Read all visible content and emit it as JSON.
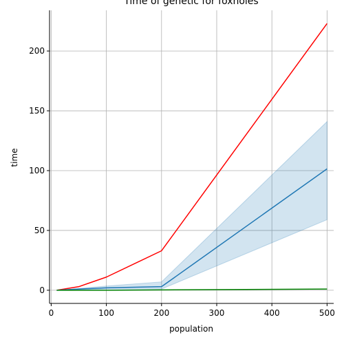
{
  "chart_data": {
    "type": "line",
    "title": "Time of genetic for foxholes",
    "xlabel": "population",
    "ylabel": "time",
    "xlim": [
      -3,
      512
    ],
    "ylim": [
      -11,
      234
    ],
    "xticks": [
      0,
      100,
      200,
      300,
      400,
      500
    ],
    "yticks": [
      0,
      50,
      100,
      150,
      200
    ],
    "grid": true,
    "series": [
      {
        "color": "#ff0000",
        "x": [
          10,
          50,
          100,
          200,
          500
        ],
        "y": [
          0,
          3,
          11,
          33,
          223
        ]
      },
      {
        "color": "#1f77b4",
        "x": [
          10,
          50,
          100,
          200,
          500
        ],
        "y": [
          0,
          1,
          2,
          3,
          101.5
        ],
        "ci_low": [
          0,
          0.5,
          1,
          1,
          59
        ],
        "ci_high": [
          0,
          1.5,
          3.5,
          7,
          141
        ]
      },
      {
        "color": "#008000",
        "x": [
          10,
          50,
          100,
          200,
          500
        ],
        "y": [
          0,
          0,
          0,
          0.3,
          1
        ]
      }
    ]
  }
}
